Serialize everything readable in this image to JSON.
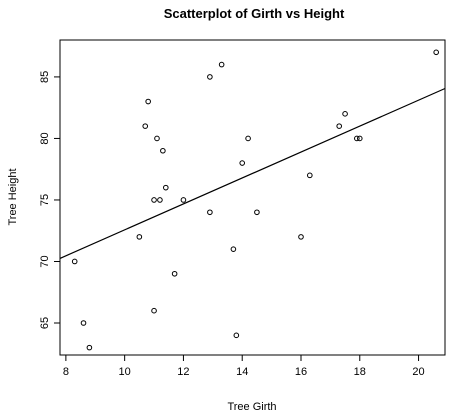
{
  "chart_data": {
    "type": "scatter",
    "title": "Scatterplot of Girth vs Height",
    "xlabel": "Tree Girth",
    "ylabel": "Tree Height",
    "xlim": [
      7.8,
      20.9
    ],
    "ylim": [
      62.4,
      88.0
    ],
    "xticks": [
      8,
      10,
      12,
      14,
      16,
      18,
      20
    ],
    "yticks": [
      65,
      70,
      75,
      80,
      85
    ],
    "grid": false,
    "points": [
      {
        "x": 8.3,
        "y": 70
      },
      {
        "x": 8.6,
        "y": 65
      },
      {
        "x": 8.8,
        "y": 63
      },
      {
        "x": 10.5,
        "y": 72
      },
      {
        "x": 10.7,
        "y": 81
      },
      {
        "x": 10.8,
        "y": 83
      },
      {
        "x": 11.0,
        "y": 66
      },
      {
        "x": 11.0,
        "y": 75
      },
      {
        "x": 11.1,
        "y": 80
      },
      {
        "x": 11.2,
        "y": 75
      },
      {
        "x": 11.3,
        "y": 79
      },
      {
        "x": 11.4,
        "y": 76
      },
      {
        "x": 11.7,
        "y": 69
      },
      {
        "x": 12.0,
        "y": 75
      },
      {
        "x": 12.9,
        "y": 74
      },
      {
        "x": 12.9,
        "y": 85
      },
      {
        "x": 13.3,
        "y": 86
      },
      {
        "x": 13.7,
        "y": 71
      },
      {
        "x": 13.8,
        "y": 64
      },
      {
        "x": 14.0,
        "y": 78
      },
      {
        "x": 14.2,
        "y": 80
      },
      {
        "x": 14.5,
        "y": 74
      },
      {
        "x": 16.0,
        "y": 72
      },
      {
        "x": 16.3,
        "y": 77
      },
      {
        "x": 17.3,
        "y": 81
      },
      {
        "x": 17.5,
        "y": 82
      },
      {
        "x": 17.9,
        "y": 80
      },
      {
        "x": 18.0,
        "y": 80
      },
      {
        "x": 20.6,
        "y": 87
      }
    ],
    "fit_line": {
      "intercept": 62.03,
      "slope": 1.054
    }
  }
}
